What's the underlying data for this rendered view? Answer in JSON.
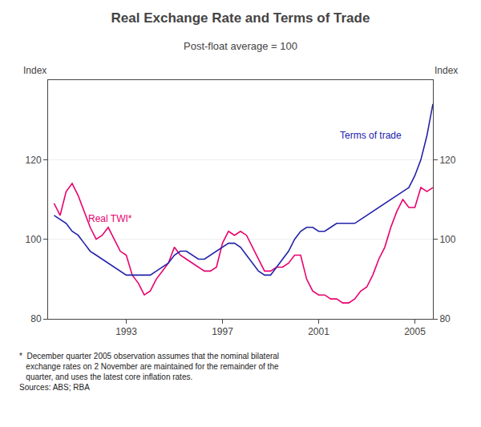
{
  "chart_data": {
    "type": "line",
    "title": "Real Exchange Rate and Terms of Trade",
    "subtitle": "Post-float average = 100",
    "ylabel": "Index",
    "y2label": "Index",
    "footnote": "*  December quarter 2005 observation assumes that the nominal bilateral\n   exchange rates on 2 November are maintained for the remainder of the\n   quarter, and uses the latest core inflation rates.\nSources: ABS; RBA",
    "x": [
      1990.0,
      1990.25,
      1990.5,
      1990.75,
      1991.0,
      1991.25,
      1991.5,
      1991.75,
      1992.0,
      1992.25,
      1992.5,
      1992.75,
      1993.0,
      1993.25,
      1993.5,
      1993.75,
      1994.0,
      1994.25,
      1994.5,
      1994.75,
      1995.0,
      1995.25,
      1995.5,
      1995.75,
      1996.0,
      1996.25,
      1996.5,
      1996.75,
      1997.0,
      1997.25,
      1997.5,
      1997.75,
      1998.0,
      1998.25,
      1998.5,
      1998.75,
      1999.0,
      1999.25,
      1999.5,
      1999.75,
      2000.0,
      2000.25,
      2000.5,
      2000.75,
      2001.0,
      2001.25,
      2001.5,
      2001.75,
      2002.0,
      2002.25,
      2002.5,
      2002.75,
      2003.0,
      2003.25,
      2003.5,
      2003.75,
      2004.0,
      2004.25,
      2004.5,
      2004.75,
      2005.0,
      2005.25,
      2005.5,
      2005.75
    ],
    "xlim": [
      1989.75,
      2005.75
    ],
    "xticks": [
      1993,
      1997,
      2001,
      2005
    ],
    "ylim": [
      80,
      140
    ],
    "yticks": [
      80,
      100,
      120
    ],
    "y2lim": [
      80,
      140
    ],
    "y2ticks": [
      80,
      100,
      120
    ],
    "grid": true,
    "series": [
      {
        "name": "Real TWI*",
        "color": "#e8006e",
        "values": [
          109,
          106,
          112,
          114,
          111,
          107,
          103,
          100,
          101,
          103,
          100,
          97,
          96,
          91,
          89,
          86,
          87,
          90,
          92,
          94,
          98,
          96,
          95,
          94,
          93,
          92,
          92,
          93,
          99,
          102,
          101,
          102,
          101,
          98,
          95,
          92,
          92,
          93,
          93,
          94,
          96,
          96,
          90,
          87,
          86,
          86,
          85,
          85,
          84,
          84,
          85,
          87,
          88,
          91,
          95,
          98,
          103,
          107,
          110,
          108,
          108,
          113,
          112,
          113
        ]
      },
      {
        "name": "Terms of trade",
        "color": "#2222aa",
        "values": [
          106,
          105,
          104,
          102,
          101,
          99,
          97,
          96,
          95,
          94,
          93,
          92,
          91,
          91,
          91,
          91,
          91,
          92,
          93,
          94,
          96,
          97,
          97,
          96,
          95,
          95,
          96,
          97,
          98,
          99,
          99,
          98,
          96,
          94,
          92,
          91,
          91,
          93,
          95,
          97,
          100,
          102,
          103,
          103,
          102,
          102,
          103,
          104,
          104,
          104,
          104,
          105,
          106,
          107,
          108,
          109,
          110,
          111,
          112,
          113,
          116,
          120,
          126,
          134
        ]
      }
    ]
  }
}
